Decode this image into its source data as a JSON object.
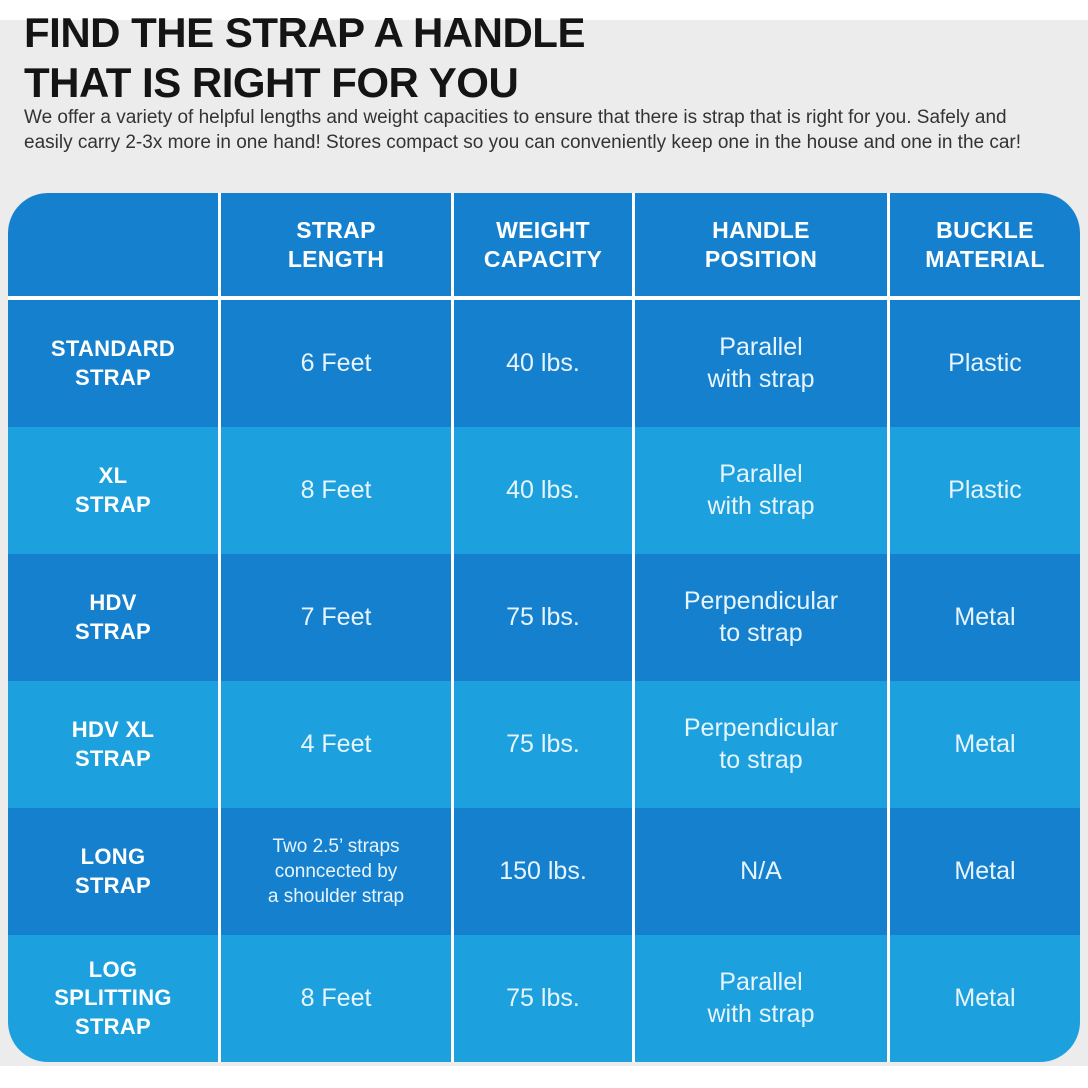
{
  "header": {
    "title_line1": "FIND THE STRAP A HANDLE",
    "title_line2": "THAT IS RIGHT FOR YOU",
    "subtitle": "We offer a variety of helpful lengths and weight capacities to ensure that there is strap that is right for you. Safely and\neasily carry 2-3x more in one hand! Stores compact so you can conveniently keep one in the house and one in the car!"
  },
  "colors": {
    "background_gray": "#ececec",
    "row_dark": "#1581ce",
    "row_light": "#1ca1de",
    "divider": "#ffffff",
    "header_text": "#ffffff",
    "cell_text": "#e7f4fc"
  },
  "table": {
    "column_headers": [
      "",
      "STRAP\nLENGTH",
      "WEIGHT\nCAPACITY",
      "HANDLE\nPOSITION",
      "BUCKLE\nMATERIAL"
    ],
    "fields": [
      "name",
      "strap_length",
      "weight_capacity",
      "handle_position",
      "buckle_material"
    ],
    "rows": [
      {
        "name": "STANDARD\nSTRAP",
        "strap_length": "6 Feet",
        "weight_capacity": "40 lbs.",
        "handle_position": "Parallel\nwith strap",
        "buckle_material": "Plastic"
      },
      {
        "name": "XL\nSTRAP",
        "strap_length": "8 Feet",
        "weight_capacity": "40 lbs.",
        "handle_position": "Parallel\nwith strap",
        "buckle_material": "Plastic"
      },
      {
        "name": "HDV\nSTRAP",
        "strap_length": "7 Feet",
        "weight_capacity": "75 lbs.",
        "handle_position": "Perpendicular\nto strap",
        "buckle_material": "Metal"
      },
      {
        "name": "HDV XL\nSTRAP",
        "strap_length": "4 Feet",
        "weight_capacity": "75 lbs.",
        "handle_position": "Perpendicular\nto strap",
        "buckle_material": "Metal"
      },
      {
        "name": "LONG\nSTRAP",
        "strap_length": "Two 2.5’ straps\nconncected by\na shoulder strap",
        "weight_capacity": "150 lbs.",
        "handle_position": "N/A",
        "buckle_material": "Metal"
      },
      {
        "name": "LOG\nSPLITTING\nSTRAP",
        "strap_length": "8 Feet",
        "weight_capacity": "75 lbs.",
        "handle_position": "Parallel\nwith strap",
        "buckle_material": "Metal"
      }
    ]
  },
  "chart_data": {
    "type": "table",
    "title": "FIND THE STRAP A HANDLE THAT IS RIGHT FOR YOU",
    "columns": [
      "",
      "STRAP LENGTH",
      "WEIGHT CAPACITY",
      "HANDLE POSITION",
      "BUCKLE MATERIAL"
    ],
    "rows": [
      [
        "STANDARD STRAP",
        "6 Feet",
        "40 lbs.",
        "Parallel with strap",
        "Plastic"
      ],
      [
        "XL STRAP",
        "8 Feet",
        "40 lbs.",
        "Parallel with strap",
        "Plastic"
      ],
      [
        "HDV STRAP",
        "7 Feet",
        "75 lbs.",
        "Perpendicular to strap",
        "Metal"
      ],
      [
        "HDV XL STRAP",
        "4 Feet",
        "75 lbs.",
        "Perpendicular to strap",
        "Metal"
      ],
      [
        "LONG STRAP",
        "Two 2.5’ straps conncected by a shoulder strap",
        "150 lbs.",
        "N/A",
        "Metal"
      ],
      [
        "LOG SPLITTING STRAP",
        "8 Feet",
        "75 lbs.",
        "Parallel with strap",
        "Metal"
      ]
    ]
  }
}
